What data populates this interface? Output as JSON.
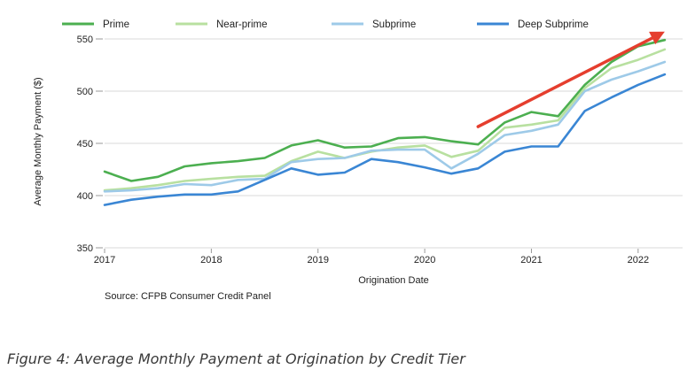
{
  "chart_data": {
    "type": "line",
    "title": "",
    "xlabel": "Origination Date",
    "ylabel": "Average Monthly Payment ($)",
    "source": "Source: CFPB Consumer Credit Panel",
    "ylim": [
      350,
      550
    ],
    "yticks": [
      350,
      400,
      450,
      500,
      550
    ],
    "xlim": [
      "2017-01",
      "2022-06"
    ],
    "xticks": [
      "2017",
      "2018",
      "2019",
      "2020",
      "2021",
      "2022"
    ],
    "grid": "horizontal",
    "legend": "top",
    "x": [
      "2017-01",
      "2017-04",
      "2017-07",
      "2017-10",
      "2018-01",
      "2018-04",
      "2018-07",
      "2018-10",
      "2019-01",
      "2019-04",
      "2019-07",
      "2019-10",
      "2020-01",
      "2020-04",
      "2020-07",
      "2020-10",
      "2021-01",
      "2021-04",
      "2021-07",
      "2021-10",
      "2022-01",
      "2022-04"
    ],
    "series": [
      {
        "name": "Prime",
        "color": "#4caf50",
        "values": [
          423,
          414,
          418,
          428,
          431,
          433,
          436,
          448,
          453,
          446,
          447,
          455,
          456,
          452,
          449,
          470,
          480,
          476,
          506,
          528,
          543,
          549
        ]
      },
      {
        "name": "Near-prime",
        "color": "#b8e0a0",
        "values": [
          405,
          407,
          410,
          414,
          416,
          418,
          419,
          433,
          442,
          436,
          442,
          446,
          448,
          437,
          443,
          465,
          468,
          472,
          503,
          522,
          530,
          540
        ]
      },
      {
        "name": "Subprime",
        "color": "#9ecae8",
        "values": [
          404,
          405,
          407,
          411,
          410,
          415,
          416,
          432,
          435,
          436,
          443,
          444,
          444,
          426,
          440,
          458,
          462,
          468,
          500,
          511,
          519,
          528
        ]
      },
      {
        "name": "Deep Subprime",
        "color": "#3a86d4",
        "values": [
          391,
          396,
          399,
          401,
          401,
          404,
          415,
          426,
          420,
          422,
          435,
          432,
          427,
          421,
          426,
          442,
          447,
          447,
          481,
          494,
          506,
          516
        ]
      }
    ],
    "annotation": {
      "type": "arrow",
      "color": "#e53e2e",
      "from": [
        "2020-07",
        466
      ],
      "to": [
        "2022-04",
        557
      ]
    }
  },
  "caption": "Figure 4: Average Monthly Payment at Origination by Credit Tier"
}
